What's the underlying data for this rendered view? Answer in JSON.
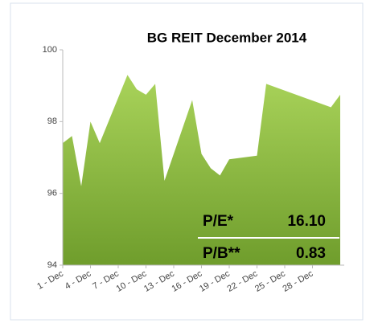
{
  "chart_data": {
    "type": "area",
    "title": "BG REIT December 2014",
    "x": [
      1,
      2,
      3,
      4,
      5,
      8,
      9,
      10,
      11,
      12,
      15,
      16,
      17,
      18,
      19,
      22,
      23,
      30,
      31
    ],
    "values": [
      97.4,
      97.6,
      96.2,
      98.0,
      97.4,
      99.3,
      98.9,
      98.75,
      99.05,
      96.35,
      98.6,
      97.1,
      96.7,
      96.5,
      96.95,
      97.05,
      99.05,
      98.4,
      98.75
    ],
    "color": "#8cbf3f",
    "xlim": [
      1,
      31
    ],
    "xticks": [
      {
        "value": 1,
        "label": "1 - Dec"
      },
      {
        "value": 4,
        "label": "4 - Dec"
      },
      {
        "value": 7,
        "label": "7 - Dec"
      },
      {
        "value": 10,
        "label": "10 - Dec"
      },
      {
        "value": 13,
        "label": "13 - Dec"
      },
      {
        "value": 16,
        "label": "16 - Dec"
      },
      {
        "value": 19,
        "label": "19 - Dec"
      },
      {
        "value": 22,
        "label": "22 - Dec"
      },
      {
        "value": 25,
        "label": "25 - Dec"
      },
      {
        "value": 28,
        "label": "28 - Dec"
      }
    ],
    "ylim": [
      94,
      100
    ],
    "yticks": [
      94,
      96,
      98,
      100
    ],
    "grid": false,
    "annotations": [
      {
        "label": "P/E*",
        "value": "16.10"
      },
      {
        "label": "P/B**",
        "value": "0.83"
      }
    ]
  }
}
